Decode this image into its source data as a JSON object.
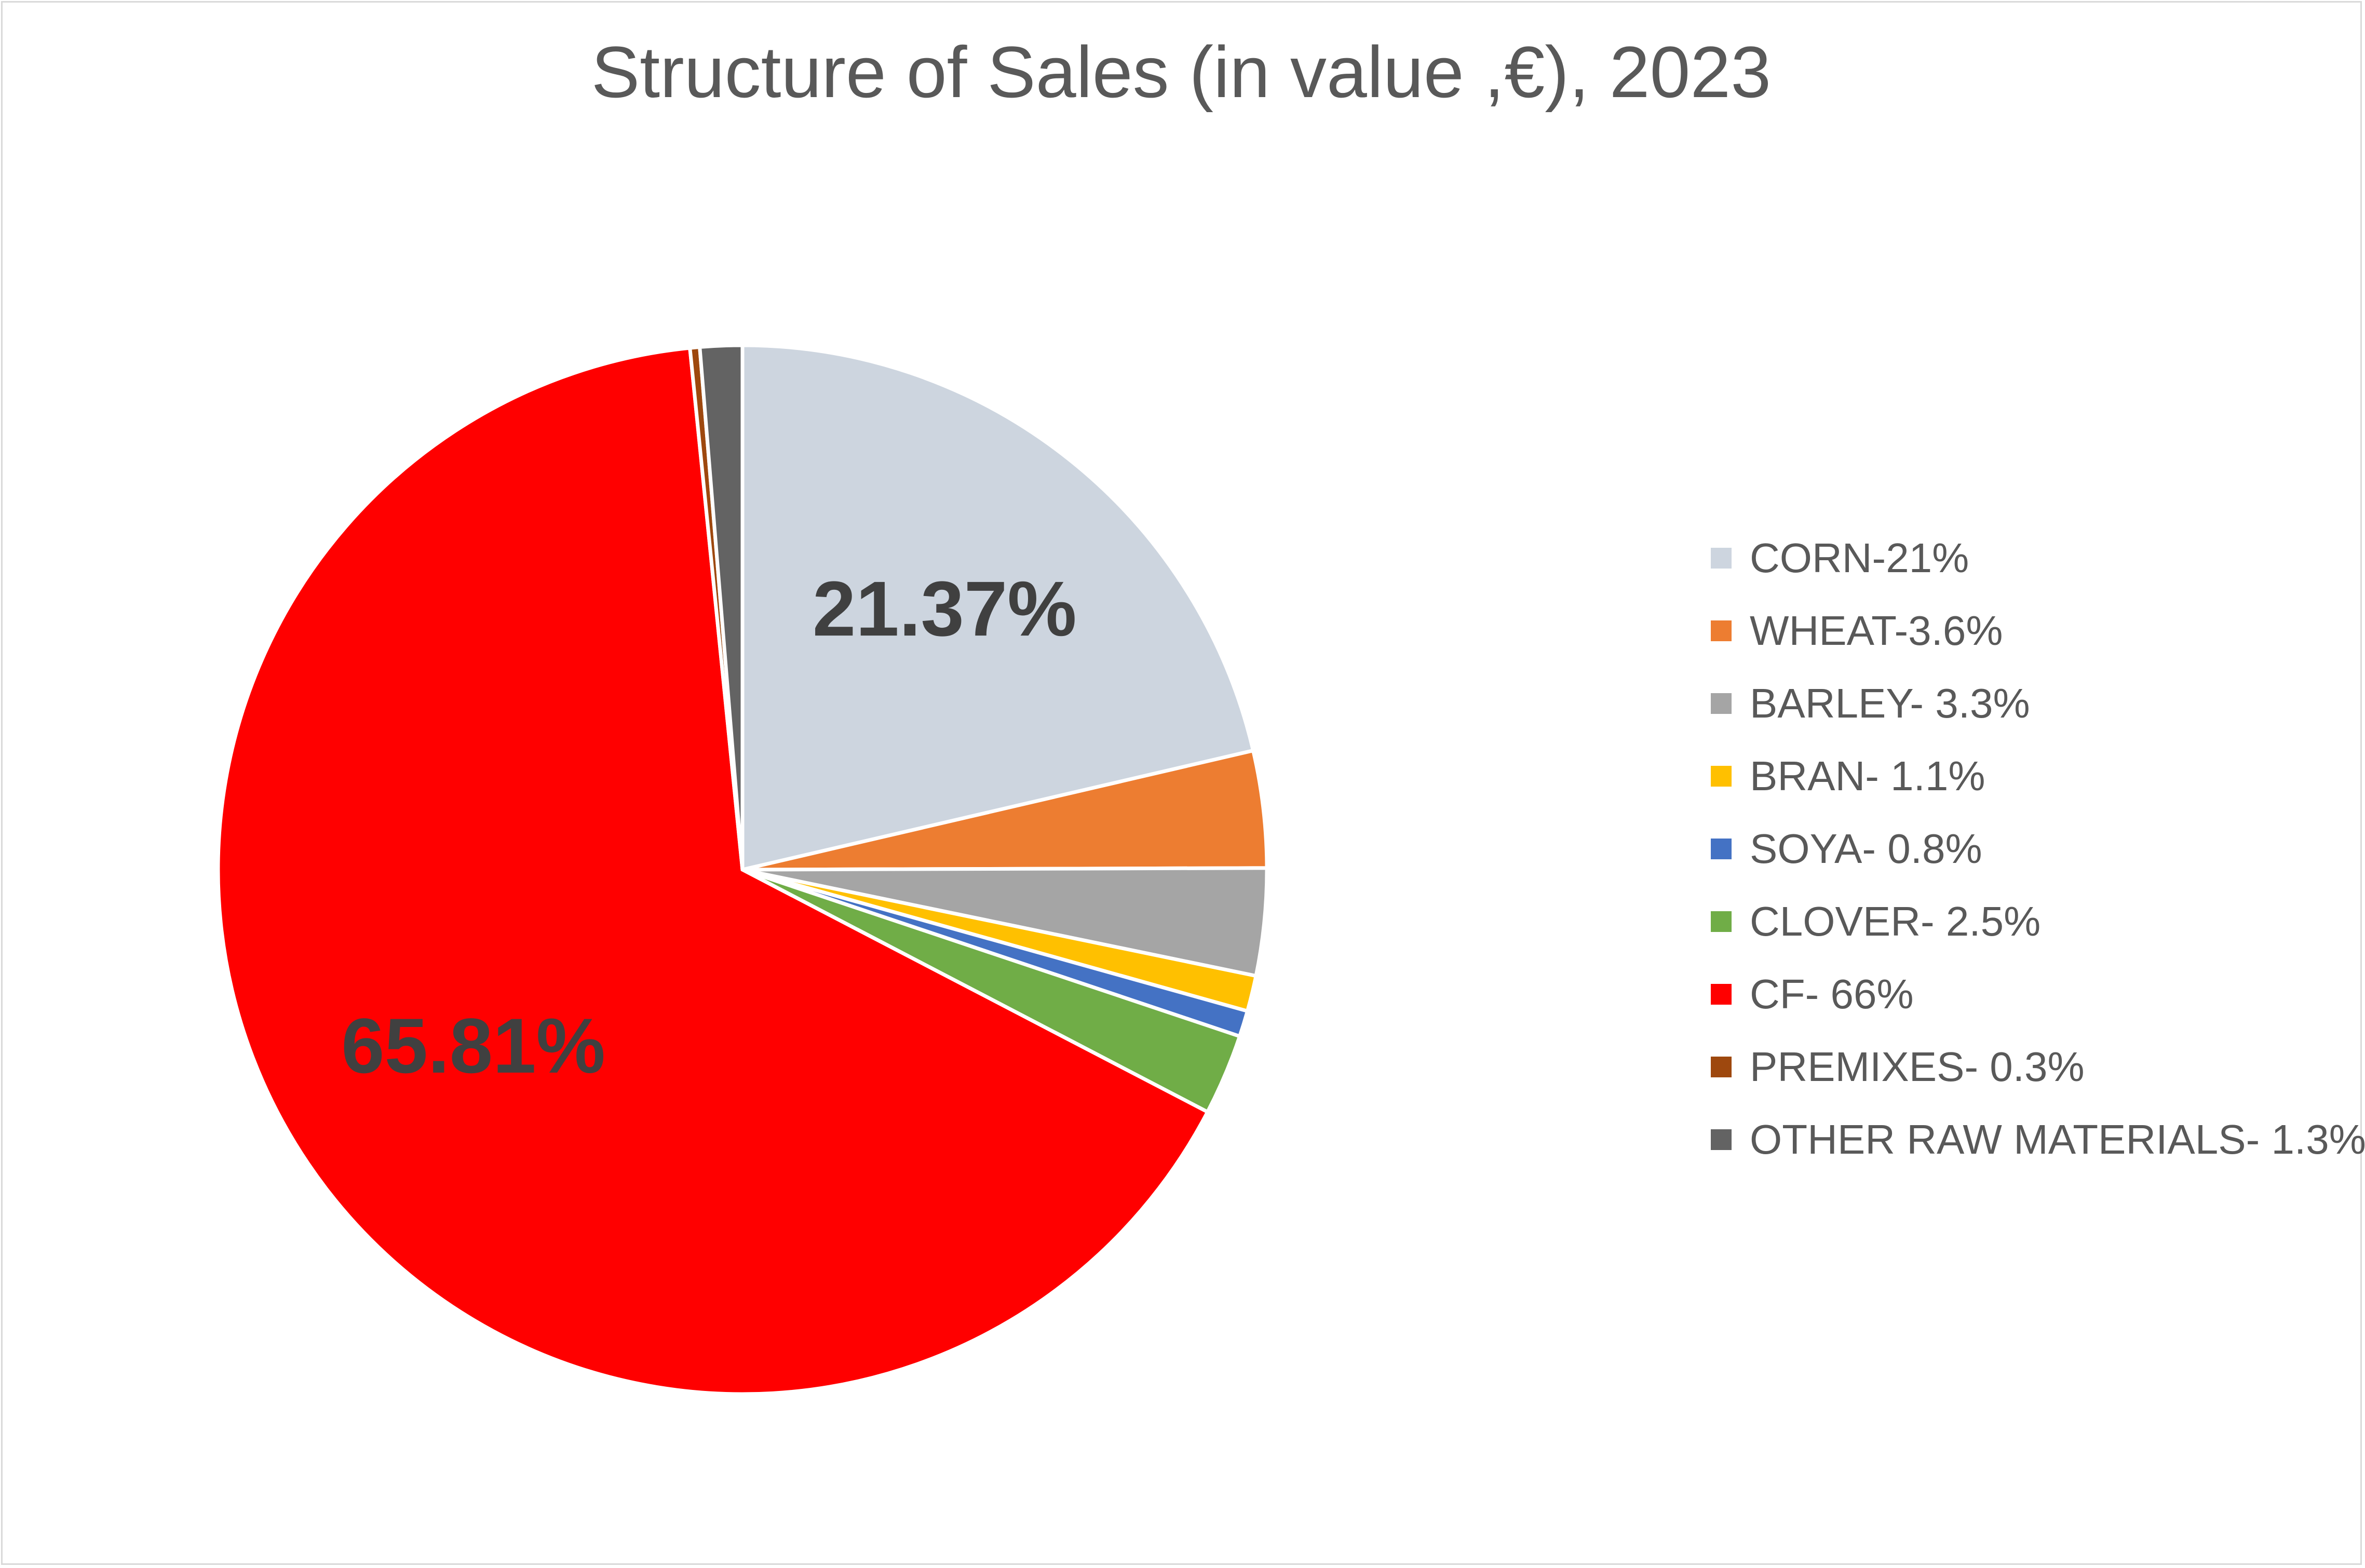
{
  "chart_data": {
    "type": "pie",
    "title": "Structure of Sales (in value ,€), 2023",
    "legend_position": "right",
    "slices": [
      {
        "name": "CORN-21%",
        "value": 21.37,
        "color": "#cdd5df",
        "data_label": "21.37%"
      },
      {
        "name": "WHEAT-3.6%",
        "value": 3.6,
        "color": "#ed7d31",
        "data_label": ""
      },
      {
        "name": "BARLEY- 3.3%",
        "value": 3.3,
        "color": "#a5a5a5",
        "data_label": ""
      },
      {
        "name": "BRAN- 1.1%",
        "value": 1.1,
        "color": "#ffc000",
        "data_label": ""
      },
      {
        "name": "SOYA- 0.8%",
        "value": 0.8,
        "color": "#4472c4",
        "data_label": ""
      },
      {
        "name": "CLOVER- 2.5%",
        "value": 2.5,
        "color": "#70ad47",
        "data_label": ""
      },
      {
        "name": "CF- 66%",
        "value": 65.81,
        "color": "#ff0000",
        "data_label": "65.81%"
      },
      {
        "name": "PREMIXES- 0.3%",
        "value": 0.3,
        "color": "#9e480e",
        "data_label": ""
      },
      {
        "name": "OTHER RAW MATERIALS- 1.3%",
        "value": 1.3,
        "color": "#636363",
        "data_label": ""
      }
    ]
  }
}
